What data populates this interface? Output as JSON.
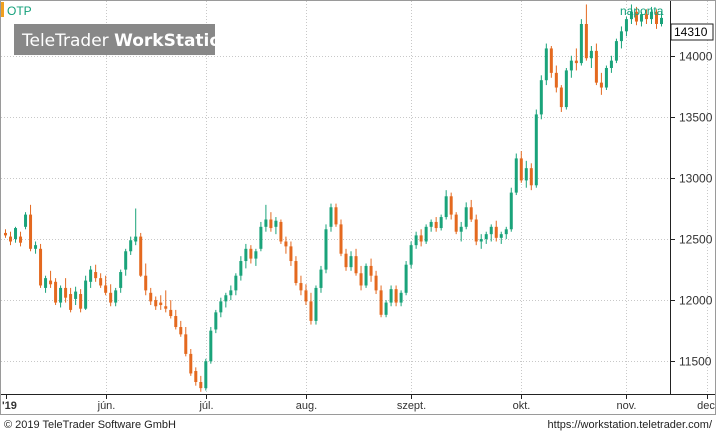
{
  "chart_data": {
    "type": "candlestick",
    "symbol": "OTP",
    "period": "naponta",
    "last_value": "14310",
    "watermark_part1": "TeleTrader ",
    "watermark_part2": "WorkStation",
    "footer_left": "© 2019 TeleTrader Software GmbH",
    "footer_right": "https://workstation.teletrader.com/",
    "y_ticks": [
      11500,
      12000,
      12500,
      13000,
      13500,
      14000
    ],
    "ylim": [
      11240,
      14440
    ],
    "x_labels": [
      "'19",
      "jún.",
      "júl.",
      "aug.",
      "szept.",
      "okt.",
      "nov.",
      "dec."
    ],
    "grid": true,
    "colors": {
      "up": "#1aa37a",
      "down": "#e4691f",
      "grid": "#c8c8c8",
      "text": "#333333",
      "symbol": "#12a07a"
    },
    "candles": [
      [
        12550,
        12580,
        12510,
        12530
      ],
      [
        12520,
        12560,
        12450,
        12480
      ],
      [
        12500,
        12600,
        12470,
        12590
      ],
      [
        12520,
        12560,
        12440,
        12470
      ],
      [
        12600,
        12720,
        12580,
        12700
      ],
      [
        12700,
        12780,
        12400,
        12420
      ],
      [
        12420,
        12480,
        12380,
        12450
      ],
      [
        12420,
        12460,
        12100,
        12120
      ],
      [
        12100,
        12200,
        12060,
        12180
      ],
      [
        12160,
        12240,
        12100,
        12130
      ],
      [
        12150,
        12180,
        11960,
        11980
      ],
      [
        11980,
        12120,
        11940,
        12100
      ],
      [
        12100,
        12180,
        11980,
        12020
      ],
      [
        12050,
        12100,
        11900,
        11920
      ],
      [
        12010,
        12110,
        11960,
        12070
      ],
      [
        12050,
        12090,
        11900,
        11930
      ],
      [
        11930,
        12200,
        11920,
        12160
      ],
      [
        12150,
        12280,
        12100,
        12250
      ],
      [
        12230,
        12290,
        12150,
        12180
      ],
      [
        12180,
        12220,
        12100,
        12120
      ],
      [
        12120,
        12200,
        12040,
        12060
      ],
      [
        12060,
        12130,
        11950,
        11980
      ],
      [
        11980,
        12100,
        11950,
        12080
      ],
      [
        12100,
        12250,
        12060,
        12230
      ],
      [
        12250,
        12420,
        12200,
        12400
      ],
      [
        12400,
        12520,
        12370,
        12490
      ],
      [
        12480,
        12750,
        12450,
        12520
      ],
      [
        12520,
        12550,
        12190,
        12200
      ],
      [
        12200,
        12300,
        12040,
        12080
      ],
      [
        12060,
        12100,
        11960,
        11990
      ],
      [
        12000,
        12030,
        11920,
        11950
      ],
      [
        11980,
        12040,
        11920,
        11960
      ],
      [
        11950,
        12080,
        11900,
        11930
      ],
      [
        11920,
        12000,
        11850,
        11870
      ],
      [
        11870,
        11920,
        11760,
        11780
      ],
      [
        11780,
        11830,
        11700,
        11720
      ],
      [
        11720,
        11780,
        11540,
        11560
      ],
      [
        11560,
        11600,
        11380,
        11400
      ],
      [
        11420,
        11450,
        11300,
        11330
      ],
      [
        11330,
        11380,
        11250,
        11280
      ],
      [
        11280,
        11520,
        11260,
        11500
      ],
      [
        11500,
        11780,
        11480,
        11750
      ],
      [
        11760,
        11920,
        11730,
        11900
      ],
      [
        11900,
        12020,
        11860,
        11990
      ],
      [
        11990,
        12060,
        11940,
        12040
      ],
      [
        12040,
        12120,
        12000,
        12080
      ],
      [
        12080,
        12220,
        12040,
        12200
      ],
      [
        12200,
        12360,
        12160,
        12320
      ],
      [
        12320,
        12460,
        12260,
        12420
      ],
      [
        12420,
        12450,
        12300,
        12340
      ],
      [
        12340,
        12420,
        12280,
        12400
      ],
      [
        12420,
        12640,
        12400,
        12600
      ],
      [
        12600,
        12780,
        12560,
        12660
      ],
      [
        12660,
        12720,
        12560,
        12590
      ],
      [
        12600,
        12680,
        12540,
        12650
      ],
      [
        12640,
        12660,
        12460,
        12480
      ],
      [
        12480,
        12520,
        12380,
        12440
      ],
      [
        12440,
        12480,
        12280,
        12320
      ],
      [
        12320,
        12360,
        12120,
        12140
      ],
      [
        12140,
        12200,
        12040,
        12080
      ],
      [
        12080,
        12130,
        11960,
        11990
      ],
      [
        11990,
        12060,
        11800,
        11830
      ],
      [
        11830,
        12120,
        11800,
        12100
      ],
      [
        12100,
        12280,
        12060,
        12250
      ],
      [
        12250,
        12620,
        12220,
        12580
      ],
      [
        12600,
        12790,
        12560,
        12760
      ],
      [
        12760,
        12790,
        12600,
        12620
      ],
      [
        12620,
        12660,
        12360,
        12380
      ],
      [
        12380,
        12420,
        12240,
        12270
      ],
      [
        12270,
        12400,
        12240,
        12360
      ],
      [
        12360,
        12420,
        12200,
        12220
      ],
      [
        12220,
        12280,
        12080,
        12120
      ],
      [
        12120,
        12300,
        12100,
        12280
      ],
      [
        12280,
        12340,
        12150,
        12200
      ],
      [
        12200,
        12240,
        12050,
        12080
      ],
      [
        12080,
        12120,
        11860,
        11880
      ],
      [
        11880,
        12000,
        11860,
        11980
      ],
      [
        11980,
        12120,
        11950,
        12090
      ],
      [
        12090,
        12120,
        11950,
        11980
      ],
      [
        11980,
        12080,
        11950,
        12060
      ],
      [
        12060,
        12320,
        12040,
        12290
      ],
      [
        12290,
        12480,
        12260,
        12450
      ],
      [
        12450,
        12560,
        12420,
        12530
      ],
      [
        12530,
        12580,
        12440,
        12480
      ],
      [
        12480,
        12620,
        12460,
        12600
      ],
      [
        12600,
        12660,
        12560,
        12640
      ],
      [
        12640,
        12680,
        12560,
        12590
      ],
      [
        12590,
        12700,
        12570,
        12680
      ],
      [
        12680,
        12900,
        12660,
        12850
      ],
      [
        12850,
        12880,
        12660,
        12700
      ],
      [
        12700,
        12720,
        12540,
        12560
      ],
      [
        12560,
        12640,
        12480,
        12600
      ],
      [
        12600,
        12800,
        12580,
        12760
      ],
      [
        12760,
        12820,
        12640,
        12660
      ],
      [
        12660,
        12700,
        12450,
        12480
      ],
      [
        12480,
        12540,
        12420,
        12500
      ],
      [
        12500,
        12560,
        12460,
        12540
      ],
      [
        12540,
        12620,
        12480,
        12600
      ],
      [
        12600,
        12650,
        12480,
        12510
      ],
      [
        12510,
        12560,
        12460,
        12540
      ],
      [
        12540,
        12600,
        12500,
        12580
      ],
      [
        12580,
        12920,
        12560,
        12880
      ],
      [
        12880,
        13200,
        12860,
        13160
      ],
      [
        13160,
        13220,
        12960,
        12980
      ],
      [
        12980,
        13140,
        12920,
        13080
      ],
      [
        13080,
        13120,
        12900,
        12940
      ],
      [
        12940,
        13560,
        12920,
        13520
      ],
      [
        13520,
        13840,
        13480,
        13800
      ],
      [
        13800,
        14100,
        13760,
        14060
      ],
      [
        14060,
        14080,
        13820,
        13860
      ],
      [
        13860,
        13920,
        13700,
        13740
      ],
      [
        13740,
        13760,
        13540,
        13580
      ],
      [
        13580,
        13900,
        13560,
        13880
      ],
      [
        13880,
        14000,
        13820,
        13960
      ],
      [
        13960,
        14060,
        13880,
        13940
      ],
      [
        13940,
        14300,
        13920,
        14260
      ],
      [
        14260,
        14420,
        13960,
        13980
      ],
      [
        13980,
        14080,
        13900,
        14040
      ],
      [
        14040,
        14100,
        13760,
        13780
      ],
      [
        13780,
        13860,
        13680,
        13740
      ],
      [
        13740,
        13920,
        13720,
        13900
      ],
      [
        13900,
        14000,
        13860,
        13960
      ],
      [
        13960,
        14140,
        13940,
        14120
      ],
      [
        14120,
        14240,
        14060,
        14200
      ],
      [
        14200,
        14320,
        14160,
        14300
      ],
      [
        14300,
        14420,
        14260,
        14360
      ],
      [
        14360,
        14400,
        14250,
        14280
      ],
      [
        14280,
        14360,
        14240,
        14340
      ],
      [
        14340,
        14380,
        14260,
        14300
      ],
      [
        14300,
        14400,
        14260,
        14360
      ],
      [
        14360,
        14380,
        14220,
        14260
      ],
      [
        14260,
        14360,
        14240,
        14310
      ]
    ],
    "x_label_candle_index": [
      0,
      20,
      40,
      60,
      81,
      103,
      124,
      140
    ]
  }
}
